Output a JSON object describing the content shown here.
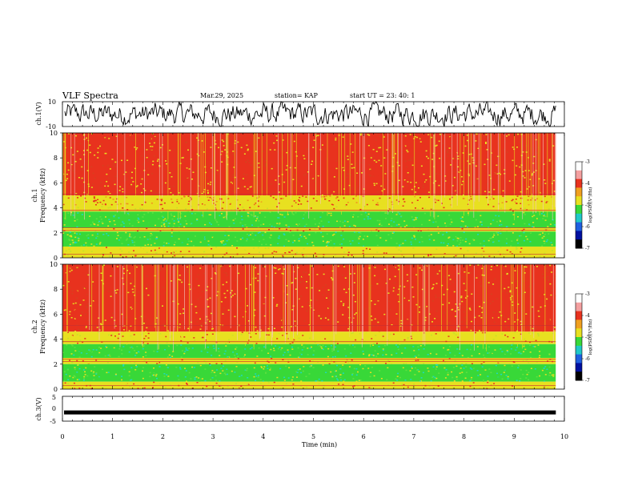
{
  "header": {
    "title": "VLF Spectra",
    "date": "Mar.29, 2025",
    "station": "station= KAP",
    "start": "start  UT  =   23: 40: 1"
  },
  "chart_data": [
    {
      "type": "line",
      "name": "ch1-voltage",
      "ylabel": "ch.1(V)",
      "yticks": [
        "10",
        "-10"
      ],
      "ylim": [
        -10,
        10
      ],
      "xlim": [
        0,
        10
      ],
      "x_end_min": 9.83,
      "description_values": {
        "mean": 0,
        "amplitude": 9
      },
      "color": "#000000"
    },
    {
      "type": "heatmap",
      "name": "ch1-spectrogram",
      "ylabel": "ch.1\nFrequency (kHz)",
      "ylabel_line1": "ch.1",
      "ylabel_line2": "Frequency  (kHz)",
      "yticks": [
        "10",
        "8",
        "6",
        "4",
        "2",
        "0"
      ],
      "ylim": [
        0,
        10
      ],
      "xlim": [
        0,
        10
      ],
      "x_end_min": 9.83,
      "bands_khz": [
        {
          "from": 10.0,
          "to": 5.0,
          "level": "red"
        },
        {
          "from": 5.0,
          "to": 4.2,
          "level": "yellow-red"
        },
        {
          "from": 4.2,
          "to": 3.7,
          "level": "yellow"
        },
        {
          "from": 3.7,
          "to": 2.4,
          "level": "green"
        },
        {
          "from": 2.4,
          "to": 2.1,
          "level": "yellow"
        },
        {
          "from": 2.1,
          "to": 0.9,
          "level": "green"
        },
        {
          "from": 0.9,
          "to": 0.0,
          "level": "yellow"
        }
      ],
      "colorbar": {
        "label": "log(PSD)(V²/Hz)",
        "ticks": [
          "-3",
          "-4",
          "-5",
          "-6",
          "-7"
        ],
        "range": [
          -7,
          -3
        ]
      }
    },
    {
      "type": "heatmap",
      "name": "ch2-spectrogram",
      "ylabel_line1": "ch.2",
      "ylabel_line2": "Frequency  (kHz)",
      "yticks": [
        "10",
        "8",
        "6",
        "4",
        "2",
        "0"
      ],
      "ylim": [
        0,
        10
      ],
      "xlim": [
        0,
        10
      ],
      "x_end_min": 9.83,
      "bands_khz": [
        {
          "from": 10.0,
          "to": 4.6,
          "level": "red"
        },
        {
          "from": 4.6,
          "to": 3.6,
          "level": "yellow"
        },
        {
          "from": 3.6,
          "to": 2.5,
          "level": "green"
        },
        {
          "from": 2.5,
          "to": 2.0,
          "level": "yellow"
        },
        {
          "from": 2.0,
          "to": 0.6,
          "level": "green"
        },
        {
          "from": 0.6,
          "to": 0.0,
          "level": "yellow"
        }
      ],
      "colorbar": {
        "label": "log(PSD)(V²/Hz)",
        "ticks": [
          "-3",
          "-4",
          "-5",
          "-6",
          "-7"
        ],
        "range": [
          -7,
          -3
        ]
      }
    },
    {
      "type": "line",
      "name": "ch3-voltage",
      "ylabel": "ch.3(V)",
      "yticks": [
        "5",
        "0",
        "-5"
      ],
      "ylim": [
        -5,
        5
      ],
      "xlim": [
        0,
        10
      ],
      "x_end_min": 9.83,
      "value": -1.5,
      "color": "#000000"
    }
  ],
  "xaxis": {
    "label": "Time  (min)",
    "ticks": [
      "0",
      "1",
      "2",
      "3",
      "4",
      "5",
      "6",
      "7",
      "8",
      "9",
      "10"
    ]
  },
  "colors": {
    "red": "#e8321e",
    "yellow": "#e8e020",
    "green": "#38d838",
    "cyan": "#20d8c0",
    "white": "#ffffff"
  }
}
